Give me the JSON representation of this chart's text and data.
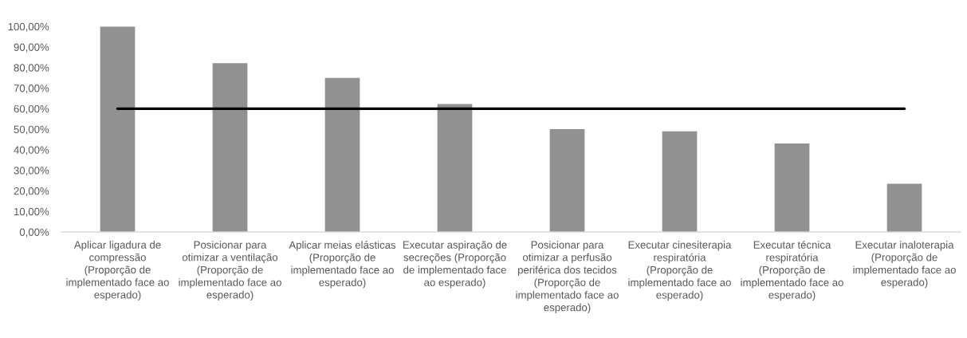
{
  "chart_data": {
    "type": "bar",
    "categories": [
      "Aplicar ligadura de\ncompressão\n(Proporção de\nimplementado face ao\nesperado)",
      "Posicionar para\notimizar a ventilação\n(Proporção de\nimplementado face ao\nesperado)",
      "Aplicar meias elásticas\n(Proporção de\nimplementado face ao\nesperado)",
      "Executar aspiração de\nsecreções (Proporção\nde implementado face\nao esperado)",
      "Posicionar para\notimizar a perfusão\nperiférica dos tecidos\n(Proporção de\nimplementado face ao\nesperado)",
      "Executar cinesiterapia\nrespiratória\n(Proporção de\nimplementado face ao\nesperado)",
      "Executar técnica\nrespiratória\n(Proporção de\nimplementado face ao\nesperado)",
      "Executar inaloterapia\n(Proporção de\nimplementado face ao\nesperado)"
    ],
    "values": [
      100,
      82.1,
      75,
      62.3,
      50,
      49,
      43.1,
      23.5
    ],
    "color": "#919191",
    "ylim": [
      0,
      100
    ],
    "yticks": [
      {
        "value": 0,
        "label": "0,00%"
      },
      {
        "value": 10,
        "label": "10,00%"
      },
      {
        "value": 20,
        "label": "20,00%"
      },
      {
        "value": 30,
        "label": "30,00%"
      },
      {
        "value": 40,
        "label": "40,00%"
      },
      {
        "value": 50,
        "label": "50,00%"
      },
      {
        "value": 60,
        "label": "60,00%"
      },
      {
        "value": 70,
        "label": "70,00%"
      },
      {
        "value": 80,
        "label": "80,00%"
      },
      {
        "value": 90,
        "label": "90,00%"
      },
      {
        "value": 100,
        "label": "100,00%"
      }
    ],
    "ref_lines": [
      {
        "axis": "y",
        "value": 60,
        "color": "#000000",
        "line_style": "solid"
      }
    ],
    "grid": false
  }
}
